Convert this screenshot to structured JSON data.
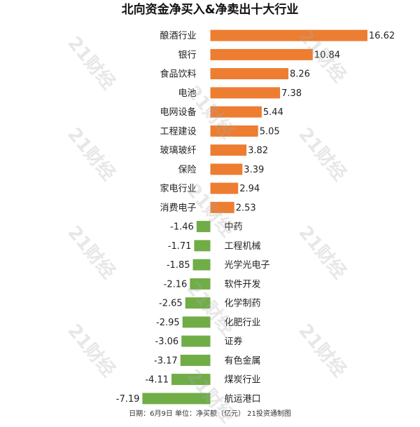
{
  "chart_data": {
    "type": "bar",
    "orientation": "horizontal",
    "title": "北向资金净买入&净卖出十大行业",
    "footer": "日期：6月9日  单位：净买额（亿元）  21投资通制图",
    "watermark": "21财经",
    "categories": [
      "酿酒行业",
      "银行",
      "食品饮料",
      "电池",
      "电网设备",
      "工程建设",
      "玻璃玻纤",
      "保险",
      "家电行业",
      "消费电子",
      "中药",
      "工程机械",
      "光学光电子",
      "软件开发",
      "化学制药",
      "化肥行业",
      "证券",
      "有色金属",
      "煤炭行业",
      "航运港口"
    ],
    "values": [
      16.62,
      10.84,
      8.26,
      7.38,
      5.44,
      5.05,
      3.82,
      3.39,
      2.94,
      2.53,
      -1.46,
      -1.71,
      -1.85,
      -2.16,
      -2.65,
      -2.95,
      -3.06,
      -3.17,
      -4.11,
      -7.19
    ],
    "value_labels": [
      "16.62",
      "10.84",
      "8.26",
      "7.38",
      "5.44",
      "5.05",
      "3.82",
      "3.39",
      "2.94",
      "2.53",
      "-1.46",
      "-1.71",
      "-1.85",
      "-2.16",
      "-2.65",
      "-2.95",
      "-3.06",
      "-3.17",
      "-4.11",
      "-7.19"
    ],
    "colors": {
      "positive": "#ED7D31",
      "negative": "#70AD47"
    }
  }
}
